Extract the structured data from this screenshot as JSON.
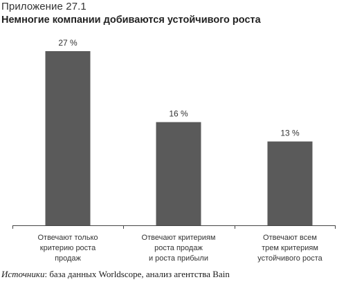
{
  "header": {
    "appendix": "Приложение 27.1",
    "title": "Немногие компании добиваются устойчивого роста"
  },
  "chart_data": {
    "type": "bar",
    "categories": [
      [
        "Отвечают только",
        "критерию роста",
        "продаж"
      ],
      [
        "Отвечают критериям",
        "роста продаж",
        "и роста прибыли"
      ],
      [
        "Отвечают всем",
        "трем критериям",
        "устойчивого роста"
      ]
    ],
    "values": [
      27,
      16,
      13
    ],
    "value_labels": [
      "27 %",
      "16 %",
      "13 %"
    ],
    "ylim": [
      0,
      30
    ],
    "grid": false,
    "bar_color": "#5a5a5a",
    "axis_color": "#444444"
  },
  "footer": {
    "source_label": "Источники",
    "source_text": ": база данных Worldscope, анализ агентства Bain"
  }
}
